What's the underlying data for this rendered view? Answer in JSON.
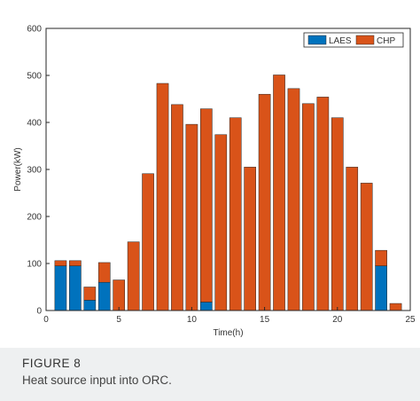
{
  "figure": {
    "label": "FIGURE 8",
    "caption": "Heat source input into ORC."
  },
  "colors": {
    "laes": "#0072bd",
    "chp": "#d95319",
    "axis": "#262626",
    "caption_bg": "#eef0f1"
  },
  "chart_data": {
    "type": "bar",
    "stacked": true,
    "xlabel": "Time(h)",
    "ylabel": "Power(kW)",
    "xlim": [
      0,
      25
    ],
    "ylim": [
      0,
      600
    ],
    "xticks": [
      "0",
      "5",
      "10",
      "15",
      "20",
      "25"
    ],
    "yticks": [
      "0",
      "100",
      "200",
      "300",
      "400",
      "500",
      "600"
    ],
    "grid": false,
    "legend_position": "top-right",
    "x": [
      1,
      2,
      3,
      4,
      5,
      6,
      7,
      8,
      9,
      10,
      11,
      12,
      13,
      14,
      15,
      16,
      17,
      18,
      19,
      20,
      21,
      22,
      23,
      24
    ],
    "series": [
      {
        "name": "LAES",
        "color": "#0072bd",
        "values": [
          95,
          95,
          22,
          60,
          0,
          0,
          0,
          0,
          0,
          0,
          18,
          0,
          0,
          0,
          0,
          0,
          0,
          0,
          0,
          0,
          0,
          0,
          95,
          0
        ]
      },
      {
        "name": "CHP",
        "color": "#d95319",
        "values": [
          11,
          11,
          28,
          42,
          65,
          146,
          291,
          483,
          438,
          396,
          411,
          374,
          410,
          305,
          460,
          501,
          472,
          440,
          454,
          410,
          305,
          271,
          33,
          15
        ]
      }
    ]
  }
}
